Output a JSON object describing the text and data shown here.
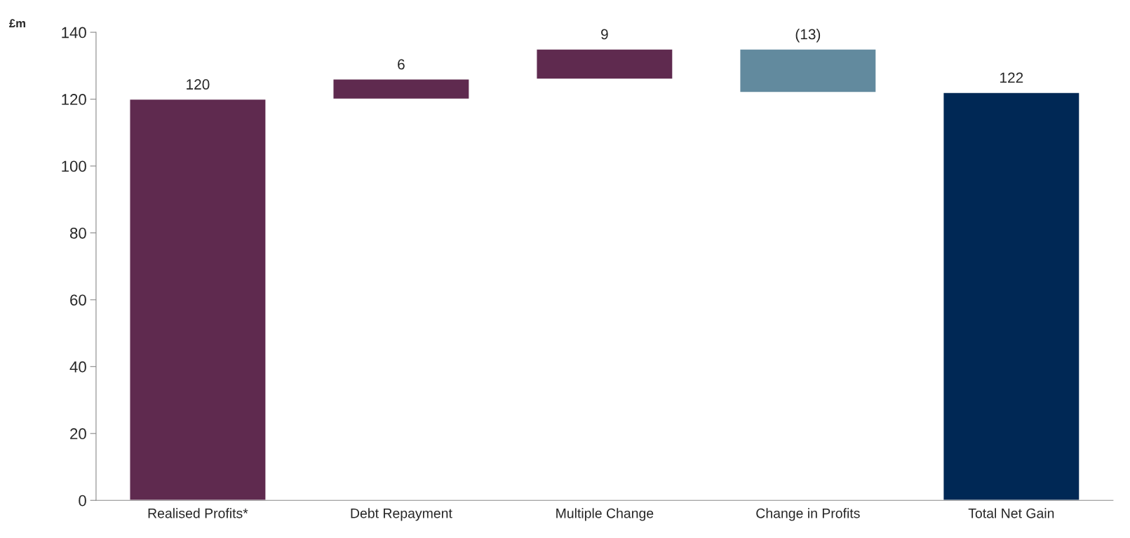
{
  "chart_data": {
    "type": "bar",
    "ylabel": "£m",
    "categories": [
      "Realised Profits*",
      "Debt Repayment",
      "Multiple Change",
      "Change in Profits",
      "Total Net Gain"
    ],
    "values": [
      120,
      6,
      9,
      -13,
      122
    ],
    "base": [
      0,
      120,
      126,
      135,
      0
    ],
    "colors": [
      "#5f2a4f",
      "#5f2a4f",
      "#5f2a4f",
      "#628a9e",
      "#002855"
    ],
    "value_labels": [
      "120",
      "6",
      "9",
      "(13)",
      "122"
    ],
    "ylim": [
      0,
      140
    ],
    "yticks": [
      0,
      20,
      40,
      60,
      80,
      100,
      120,
      140
    ],
    "grid": false,
    "legend": false
  }
}
